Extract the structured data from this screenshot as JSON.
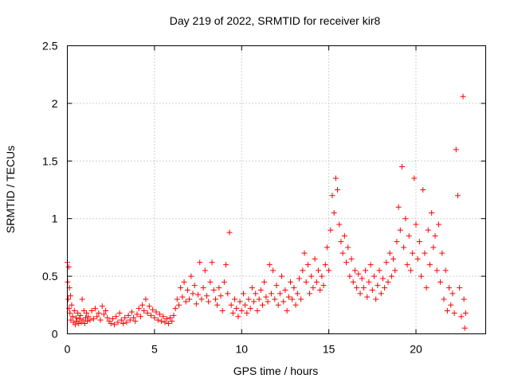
{
  "chart_data": {
    "type": "scatter",
    "title": "Day 219 of 2022, SRMTID for receiver kir8",
    "xlabel": "GPS time / hours",
    "ylabel": "SRMTID / TECUs",
    "xlim": [
      0,
      24
    ],
    "ylim": [
      0,
      2.5
    ],
    "xticks": [
      0,
      5,
      10,
      15,
      20
    ],
    "xtick_labels": [
      "0",
      "5",
      "10",
      "15",
      "20"
    ],
    "yticks": [
      0,
      0.5,
      1,
      1.5,
      2,
      2.5
    ],
    "ytick_labels": [
      "0",
      "0.5",
      "1",
      "1.5",
      "2",
      "2.5"
    ],
    "grid": true,
    "marker": "+",
    "color": "#ff0000",
    "series": [
      {
        "name": "SRMTID",
        "points": [
          [
            0.0,
            0.62
          ],
          [
            0.02,
            0.45
          ],
          [
            0.05,
            0.3
          ],
          [
            0.08,
            0.58
          ],
          [
            0.1,
            0.22
          ],
          [
            0.12,
            0.4
          ],
          [
            0.15,
            0.18
          ],
          [
            0.18,
            0.33
          ],
          [
            0.2,
            0.12
          ],
          [
            0.25,
            0.25
          ],
          [
            0.3,
            0.15
          ],
          [
            0.35,
            0.1
          ],
          [
            0.4,
            0.2
          ],
          [
            0.45,
            0.08
          ],
          [
            0.5,
            0.14
          ],
          [
            0.55,
            0.11
          ],
          [
            0.6,
            0.18
          ],
          [
            0.65,
            0.09
          ],
          [
            0.7,
            0.13
          ],
          [
            0.75,
            0.16
          ],
          [
            0.8,
            0.1
          ],
          [
            0.85,
            0.3
          ],
          [
            0.9,
            0.12
          ],
          [
            0.95,
            0.2
          ],
          [
            1.0,
            0.09
          ],
          [
            1.05,
            0.14
          ],
          [
            1.1,
            0.18
          ],
          [
            1.15,
            0.11
          ],
          [
            1.2,
            0.15
          ],
          [
            1.3,
            0.12
          ],
          [
            1.4,
            0.2
          ],
          [
            1.5,
            0.13
          ],
          [
            1.6,
            0.22
          ],
          [
            1.7,
            0.15
          ],
          [
            1.8,
            0.18
          ],
          [
            1.9,
            0.12
          ],
          [
            2.0,
            0.24
          ],
          [
            2.1,
            0.17
          ],
          [
            2.2,
            0.2
          ],
          [
            2.3,
            0.14
          ],
          [
            2.4,
            0.11
          ],
          [
            2.5,
            0.09
          ],
          [
            2.6,
            0.13
          ],
          [
            2.7,
            0.08
          ],
          [
            2.8,
            0.15
          ],
          [
            2.9,
            0.1
          ],
          [
            3.0,
            0.18
          ],
          [
            3.1,
            0.12
          ],
          [
            3.2,
            0.09
          ],
          [
            3.3,
            0.14
          ],
          [
            3.4,
            0.1
          ],
          [
            3.5,
            0.16
          ],
          [
            3.6,
            0.12
          ],
          [
            3.7,
            0.19
          ],
          [
            3.8,
            0.14
          ],
          [
            3.9,
            0.11
          ],
          [
            4.0,
            0.17
          ],
          [
            4.1,
            0.22
          ],
          [
            4.2,
            0.15
          ],
          [
            4.3,
            0.25
          ],
          [
            4.4,
            0.2
          ],
          [
            4.5,
            0.3
          ],
          [
            4.6,
            0.18
          ],
          [
            4.7,
            0.24
          ],
          [
            4.8,
            0.16
          ],
          [
            4.9,
            0.21
          ],
          [
            5.0,
            0.14
          ],
          [
            5.1,
            0.19
          ],
          [
            5.2,
            0.12
          ],
          [
            5.3,
            0.17
          ],
          [
            5.4,
            0.11
          ],
          [
            5.5,
            0.15
          ],
          [
            5.6,
            0.1
          ],
          [
            5.7,
            0.13
          ],
          [
            5.8,
            0.09
          ],
          [
            5.9,
            0.14
          ],
          [
            6.0,
            0.11
          ],
          [
            6.1,
            0.16
          ],
          [
            6.2,
            0.22
          ],
          [
            6.3,
            0.3
          ],
          [
            6.4,
            0.25
          ],
          [
            6.5,
            0.4
          ],
          [
            6.6,
            0.32
          ],
          [
            6.7,
            0.45
          ],
          [
            6.8,
            0.28
          ],
          [
            6.9,
            0.38
          ],
          [
            7.0,
            0.3
          ],
          [
            7.1,
            0.5
          ],
          [
            7.2,
            0.35
          ],
          [
            7.3,
            0.42
          ],
          [
            7.4,
            0.26
          ],
          [
            7.5,
            0.34
          ],
          [
            7.6,
            0.62
          ],
          [
            7.7,
            0.3
          ],
          [
            7.8,
            0.4
          ],
          [
            7.9,
            0.55
          ],
          [
            8.0,
            0.33
          ],
          [
            8.1,
            0.28
          ],
          [
            8.2,
            0.45
          ],
          [
            8.3,
            0.62
          ],
          [
            8.4,
            0.38
          ],
          [
            8.5,
            0.3
          ],
          [
            8.6,
            0.25
          ],
          [
            8.7,
            0.4
          ],
          [
            8.8,
            0.33
          ],
          [
            8.9,
            0.2
          ],
          [
            9.0,
            0.45
          ],
          [
            9.1,
            0.6
          ],
          [
            9.2,
            0.35
          ],
          [
            9.3,
            0.88
          ],
          [
            9.4,
            0.25
          ],
          [
            9.5,
            0.18
          ],
          [
            9.6,
            0.3
          ],
          [
            9.7,
            0.22
          ],
          [
            9.8,
            0.15
          ],
          [
            9.9,
            0.28
          ],
          [
            10.0,
            0.2
          ],
          [
            10.1,
            0.35
          ],
          [
            10.2,
            0.25
          ],
          [
            10.3,
            0.18
          ],
          [
            10.4,
            0.3
          ],
          [
            10.5,
            0.22
          ],
          [
            10.6,
            0.4
          ],
          [
            10.7,
            0.28
          ],
          [
            10.8,
            0.35
          ],
          [
            10.9,
            0.2
          ],
          [
            11.0,
            0.3
          ],
          [
            11.1,
            0.38
          ],
          [
            11.2,
            0.25
          ],
          [
            11.3,
            0.45
          ],
          [
            11.4,
            0.32
          ],
          [
            11.5,
            0.28
          ],
          [
            11.6,
            0.6
          ],
          [
            11.7,
            0.35
          ],
          [
            11.8,
            0.55
          ],
          [
            11.9,
            0.3
          ],
          [
            12.0,
            0.42
          ],
          [
            12.1,
            0.25
          ],
          [
            12.2,
            0.35
          ],
          [
            12.3,
            0.5
          ],
          [
            12.4,
            0.28
          ],
          [
            12.5,
            0.38
          ],
          [
            12.6,
            0.2
          ],
          [
            12.7,
            0.32
          ],
          [
            12.8,
            0.45
          ],
          [
            12.9,
            0.3
          ],
          [
            13.0,
            0.4
          ],
          [
            13.1,
            0.25
          ],
          [
            13.2,
            0.35
          ],
          [
            13.3,
            0.48
          ],
          [
            13.4,
            0.3
          ],
          [
            13.5,
            0.55
          ],
          [
            13.6,
            0.7
          ],
          [
            13.7,
            0.45
          ],
          [
            13.8,
            0.6
          ],
          [
            13.9,
            0.35
          ],
          [
            14.0,
            0.5
          ],
          [
            14.1,
            0.4
          ],
          [
            14.2,
            0.65
          ],
          [
            14.3,
            0.45
          ],
          [
            14.4,
            0.55
          ],
          [
            14.5,
            0.38
          ],
          [
            14.6,
            0.5
          ],
          [
            14.7,
            0.42
          ],
          [
            14.8,
            0.6
          ],
          [
            14.9,
            0.75
          ],
          [
            15.0,
            0.55
          ],
          [
            15.1,
            0.9
          ],
          [
            15.2,
            1.2
          ],
          [
            15.3,
            1.05
          ],
          [
            15.4,
            1.35
          ],
          [
            15.5,
            1.25
          ],
          [
            15.6,
            0.95
          ],
          [
            15.7,
            0.8
          ],
          [
            15.8,
            0.7
          ],
          [
            15.9,
            0.85
          ],
          [
            16.0,
            0.62
          ],
          [
            16.1,
            0.75
          ],
          [
            16.2,
            0.5
          ],
          [
            16.3,
            0.65
          ],
          [
            16.4,
            0.45
          ],
          [
            16.5,
            0.55
          ],
          [
            16.6,
            0.4
          ],
          [
            16.7,
            0.52
          ],
          [
            16.8,
            0.35
          ],
          [
            16.9,
            0.48
          ],
          [
            17.0,
            0.4
          ],
          [
            17.1,
            0.55
          ],
          [
            17.2,
            0.32
          ],
          [
            17.3,
            0.45
          ],
          [
            17.4,
            0.6
          ],
          [
            17.5,
            0.38
          ],
          [
            17.6,
            0.5
          ],
          [
            17.7,
            0.3
          ],
          [
            17.8,
            0.42
          ],
          [
            17.9,
            0.55
          ],
          [
            18.0,
            0.35
          ],
          [
            18.1,
            0.48
          ],
          [
            18.2,
            0.4
          ],
          [
            18.3,
            0.62
          ],
          [
            18.4,
            0.45
          ],
          [
            18.5,
            0.7
          ],
          [
            18.6,
            0.5
          ],
          [
            18.7,
            0.65
          ],
          [
            18.8,
            0.55
          ],
          [
            18.9,
            0.8
          ],
          [
            19.0,
            1.1
          ],
          [
            19.1,
            0.9
          ],
          [
            19.2,
            1.45
          ],
          [
            19.3,
            0.75
          ],
          [
            19.4,
            1.0
          ],
          [
            19.5,
            0.6
          ],
          [
            19.6,
            0.85
          ],
          [
            19.7,
            0.55
          ],
          [
            19.8,
            0.7
          ],
          [
            19.9,
            1.35
          ],
          [
            20.0,
            0.95
          ],
          [
            20.1,
            0.65
          ],
          [
            20.2,
            0.8
          ],
          [
            20.3,
            0.5
          ],
          [
            20.4,
            1.25
          ],
          [
            20.5,
            0.7
          ],
          [
            20.6,
            0.4
          ],
          [
            20.7,
            0.9
          ],
          [
            20.8,
            0.6
          ],
          [
            20.9,
            1.05
          ],
          [
            21.0,
            0.75
          ],
          [
            21.1,
            0.85
          ],
          [
            21.2,
            0.55
          ],
          [
            21.3,
            0.95
          ],
          [
            21.4,
            0.45
          ],
          [
            21.5,
            0.7
          ],
          [
            21.6,
            0.3
          ],
          [
            21.7,
            0.55
          ],
          [
            21.8,
            0.2
          ],
          [
            21.9,
            0.4
          ],
          [
            22.0,
            0.25
          ],
          [
            22.1,
            0.35
          ],
          [
            22.2,
            0.18
          ],
          [
            22.3,
            1.6
          ],
          [
            22.4,
            1.2
          ],
          [
            22.5,
            0.4
          ],
          [
            22.6,
            0.15
          ],
          [
            22.7,
            2.06
          ],
          [
            22.75,
            0.3
          ],
          [
            22.8,
            0.05
          ],
          [
            22.85,
            0.18
          ]
        ]
      }
    ]
  }
}
